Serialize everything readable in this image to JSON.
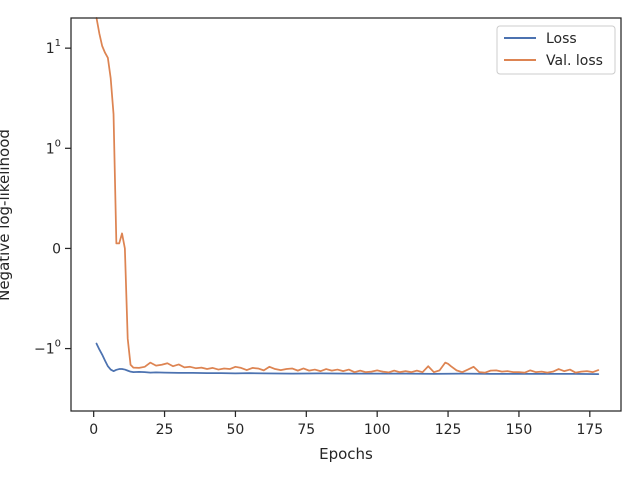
{
  "chart_data": {
    "type": "line",
    "title": "",
    "xlabel": "Epochs",
    "ylabel": "Negative log-likelihood",
    "yscale": "symlog",
    "linthresh": 1,
    "xlim": [
      -8,
      186
    ],
    "ylim": [
      -4.2,
      20
    ],
    "x_ticks": [
      0,
      25,
      50,
      75,
      100,
      125,
      150,
      175
    ],
    "x_tick_labels": [
      "0",
      "25",
      "50",
      "75",
      "100",
      "125",
      "150",
      "175"
    ],
    "y_ticks": [
      -1,
      0,
      1,
      10
    ],
    "y_tick_base": "10",
    "y_tick_labels": [
      {
        "prefix": "−1",
        "exp": "0"
      },
      {
        "prefix": "",
        "exp": "",
        "plain": "0"
      },
      {
        "prefix": "1",
        "exp": "0"
      },
      {
        "prefix": "1",
        "exp": "1"
      }
    ],
    "grid": false,
    "legend": "top-right",
    "series": [
      {
        "name": "Loss",
        "color": "#4c72b0",
        "x": [
          1,
          2,
          3,
          4,
          5,
          6,
          7,
          8,
          9,
          10,
          11,
          12,
          13,
          14,
          16,
          18,
          20,
          22,
          25,
          30,
          35,
          40,
          45,
          50,
          55,
          60,
          70,
          80,
          90,
          100,
          110,
          120,
          130,
          140,
          150,
          160,
          170,
          178
        ],
        "y": [
          -0.95,
          -1.02,
          -1.15,
          -1.32,
          -1.5,
          -1.62,
          -1.68,
          -1.63,
          -1.6,
          -1.6,
          -1.62,
          -1.66,
          -1.7,
          -1.72,
          -1.71,
          -1.72,
          -1.74,
          -1.73,
          -1.74,
          -1.75,
          -1.75,
          -1.76,
          -1.76,
          -1.77,
          -1.76,
          -1.77,
          -1.78,
          -1.77,
          -1.78,
          -1.78,
          -1.78,
          -1.79,
          -1.78,
          -1.79,
          -1.79,
          -1.79,
          -1.79,
          -1.8
        ]
      },
      {
        "name": "Val. loss",
        "color": "#dd8452",
        "x": [
          1,
          2,
          3,
          4,
          5,
          6,
          7,
          8,
          9,
          10,
          11,
          12,
          13,
          14,
          16,
          18,
          20,
          22,
          24,
          26,
          28,
          30,
          32,
          34,
          36,
          38,
          40,
          42,
          44,
          46,
          48,
          50,
          52,
          54,
          56,
          58,
          60,
          62,
          64,
          66,
          68,
          70,
          72,
          74,
          76,
          78,
          80,
          82,
          84,
          86,
          88,
          90,
          92,
          94,
          96,
          98,
          100,
          102,
          104,
          106,
          108,
          110,
          112,
          114,
          116,
          118,
          120,
          122,
          124,
          125,
          126,
          128,
          130,
          132,
          134,
          136,
          138,
          140,
          142,
          144,
          146,
          148,
          150,
          152,
          154,
          156,
          158,
          160,
          162,
          164,
          166,
          168,
          170,
          172,
          174,
          176,
          178
        ],
        "y": [
          20,
          14,
          10.5,
          9,
          8,
          5,
          2.2,
          0.05,
          0.05,
          0.15,
          0,
          -0.9,
          -1.45,
          -1.55,
          -1.56,
          -1.52,
          -1.38,
          -1.48,
          -1.45,
          -1.4,
          -1.5,
          -1.44,
          -1.54,
          -1.52,
          -1.57,
          -1.55,
          -1.6,
          -1.56,
          -1.62,
          -1.58,
          -1.6,
          -1.52,
          -1.56,
          -1.64,
          -1.56,
          -1.58,
          -1.65,
          -1.52,
          -1.6,
          -1.64,
          -1.6,
          -1.58,
          -1.66,
          -1.58,
          -1.66,
          -1.62,
          -1.68,
          -1.6,
          -1.66,
          -1.62,
          -1.68,
          -1.62,
          -1.72,
          -1.66,
          -1.72,
          -1.7,
          -1.65,
          -1.7,
          -1.73,
          -1.66,
          -1.72,
          -1.68,
          -1.72,
          -1.66,
          -1.72,
          -1.5,
          -1.72,
          -1.65,
          -1.38,
          -1.42,
          -1.5,
          -1.65,
          -1.72,
          -1.62,
          -1.52,
          -1.72,
          -1.74,
          -1.66,
          -1.65,
          -1.7,
          -1.68,
          -1.72,
          -1.72,
          -1.74,
          -1.65,
          -1.72,
          -1.7,
          -1.74,
          -1.7,
          -1.6,
          -1.68,
          -1.62,
          -1.74,
          -1.7,
          -1.68,
          -1.72,
          -1.64
        ]
      }
    ]
  }
}
